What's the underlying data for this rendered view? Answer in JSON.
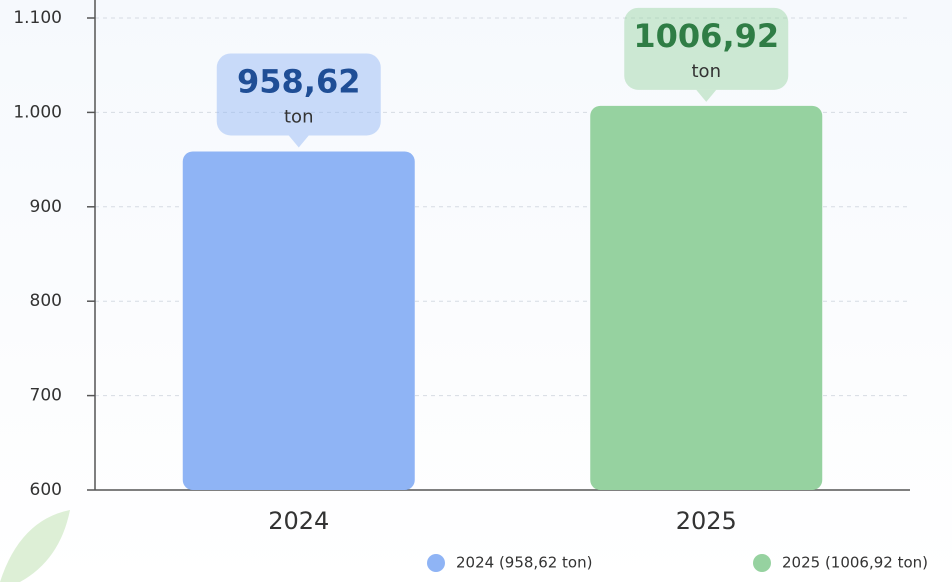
{
  "chart_data": {
    "type": "bar",
    "categories": [
      "2024",
      "2025"
    ],
    "series": [
      {
        "name": "2024 (958,62 ton)",
        "color": "#8fb4f5",
        "label_color": "#1f4e96",
        "values": [
          958.62,
          null
        ],
        "value_labels": [
          "958,62",
          null
        ]
      },
      {
        "name": "2025 (1006,92 ton)",
        "color": "#96d2a0",
        "label_color": "#2f7d45",
        "values": [
          null,
          1006.92
        ],
        "value_labels": [
          null,
          "1006,92"
        ]
      }
    ],
    "value_unit": "ton",
    "ylim": [
      600,
      1100
    ],
    "yticks": [
      600,
      700,
      800,
      900,
      {
        "value": 1000,
        "label": "1.000"
      },
      {
        "value": 1100,
        "label": "1.100"
      }
    ],
    "grid": true
  }
}
